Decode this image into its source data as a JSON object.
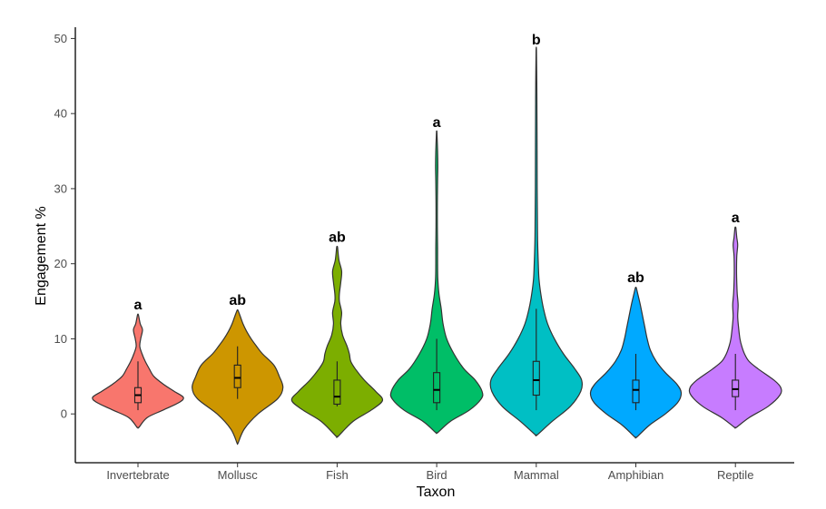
{
  "chart_data": {
    "type": "violin",
    "xlabel": "Taxon",
    "ylabel": "Engagement %",
    "ylim": [
      -6.5,
      51.5
    ],
    "yticks": [
      0,
      10,
      20,
      30,
      40,
      50
    ],
    "grid": false,
    "legend": "none",
    "categories": [
      "Invertebrate",
      "Mollusc",
      "Fish",
      "Bird",
      "Mammal",
      "Amphibian",
      "Reptile"
    ],
    "groups": [
      {
        "name": "Invertebrate",
        "color": "#F8766D",
        "label": "a",
        "min": -1.8,
        "max": 13.2,
        "whisker_low": 0.5,
        "q1": 1.5,
        "median": 2.5,
        "q3": 3.5,
        "whisker_high": 7,
        "density": [
          [
            -1.8,
            0.02
          ],
          [
            -0.5,
            0.2
          ],
          [
            0.5,
            0.55
          ],
          [
            1.5,
            0.9
          ],
          [
            2.2,
            1.0
          ],
          [
            3,
            0.8
          ],
          [
            4,
            0.55
          ],
          [
            5,
            0.35
          ],
          [
            6,
            0.25
          ],
          [
            7,
            0.16
          ],
          [
            8,
            0.09
          ],
          [
            9,
            0.04
          ],
          [
            10,
            0.06
          ],
          [
            11.2,
            0.1
          ],
          [
            12,
            0.05
          ],
          [
            13.2,
            0.01
          ]
        ]
      },
      {
        "name": "Mollusc",
        "color": "#CD9600",
        "label": "ab",
        "min": -3.9,
        "max": 13.8,
        "whisker_low": 2,
        "q1": 3.5,
        "median": 4.8,
        "q3": 6.5,
        "whisker_high": 9,
        "density": [
          [
            -3.9,
            0.01
          ],
          [
            -2,
            0.15
          ],
          [
            0,
            0.45
          ],
          [
            2,
            0.88
          ],
          [
            3.5,
            1.0
          ],
          [
            5,
            0.92
          ],
          [
            6.5,
            0.8
          ],
          [
            8,
            0.55
          ],
          [
            9,
            0.42
          ],
          [
            10,
            0.3
          ],
          [
            11,
            0.2
          ],
          [
            12,
            0.12
          ],
          [
            13,
            0.06
          ],
          [
            13.8,
            0.01
          ]
        ]
      },
      {
        "name": "Fish",
        "color": "#7CAE00",
        "label": "ab",
        "min": -3,
        "max": 22.2,
        "whisker_low": 1,
        "q1": 1.3,
        "median": 2.3,
        "q3": 4.5,
        "whisker_high": 7,
        "density": [
          [
            -3,
            0.02
          ],
          [
            -1,
            0.35
          ],
          [
            0.5,
            0.75
          ],
          [
            1.8,
            1.0
          ],
          [
            3,
            0.85
          ],
          [
            4.5,
            0.6
          ],
          [
            6,
            0.4
          ],
          [
            7,
            0.3
          ],
          [
            8,
            0.27
          ],
          [
            9,
            0.22
          ],
          [
            10.5,
            0.12
          ],
          [
            12,
            0.08
          ],
          [
            13.5,
            0.1
          ],
          [
            15,
            0.05
          ],
          [
            16,
            0.05
          ],
          [
            17.5,
            0.08
          ],
          [
            19,
            0.1
          ],
          [
            20.5,
            0.04
          ],
          [
            22.2,
            0.01
          ]
        ]
      },
      {
        "name": "Bird",
        "color": "#00BE67",
        "label": "a",
        "min": -2.5,
        "max": 37.5,
        "whisker_low": 0.5,
        "q1": 1.5,
        "median": 3.2,
        "q3": 5.5,
        "whisker_high": 10,
        "density": [
          [
            -2.5,
            0.02
          ],
          [
            -1,
            0.3
          ],
          [
            0.5,
            0.72
          ],
          [
            2,
            0.98
          ],
          [
            3,
            1.0
          ],
          [
            4.5,
            0.85
          ],
          [
            6,
            0.6
          ],
          [
            8,
            0.38
          ],
          [
            10,
            0.22
          ],
          [
            12,
            0.14
          ],
          [
            14,
            0.1
          ],
          [
            16,
            0.05
          ],
          [
            18,
            0.025
          ],
          [
            20,
            0.02
          ],
          [
            22,
            0.02
          ],
          [
            25,
            0.015
          ],
          [
            28,
            0.015
          ],
          [
            31,
            0.02
          ],
          [
            33,
            0.025
          ],
          [
            35,
            0.02
          ],
          [
            37.5,
            0.005
          ]
        ]
      },
      {
        "name": "Mammal",
        "color": "#00BFC4",
        "label": "b",
        "min": -2.8,
        "max": 48.5,
        "whisker_low": 0.5,
        "q1": 2.5,
        "median": 4.5,
        "q3": 7,
        "whisker_high": 14,
        "density": [
          [
            -2.8,
            0.02
          ],
          [
            -1,
            0.35
          ],
          [
            1,
            0.75
          ],
          [
            3,
            0.98
          ],
          [
            4.5,
            1.0
          ],
          [
            6,
            0.85
          ],
          [
            8,
            0.6
          ],
          [
            10,
            0.4
          ],
          [
            12,
            0.25
          ],
          [
            14,
            0.16
          ],
          [
            16,
            0.1
          ],
          [
            18,
            0.06
          ],
          [
            20,
            0.045
          ],
          [
            23,
            0.03
          ],
          [
            26,
            0.025
          ],
          [
            30,
            0.02
          ],
          [
            35,
            0.018
          ],
          [
            40,
            0.015
          ],
          [
            44,
            0.012
          ],
          [
            48.5,
            0.004
          ]
        ]
      },
      {
        "name": "Amphibian",
        "color": "#00A9FF",
        "label": "ab",
        "min": -3.1,
        "max": 16.8,
        "whisker_low": 0.5,
        "q1": 1.5,
        "median": 3.2,
        "q3": 4.5,
        "whisker_high": 8,
        "density": [
          [
            -3.1,
            0.02
          ],
          [
            -1.5,
            0.3
          ],
          [
            0,
            0.65
          ],
          [
            1.5,
            0.92
          ],
          [
            2.8,
            1.0
          ],
          [
            4,
            0.9
          ],
          [
            5.5,
            0.65
          ],
          [
            7,
            0.45
          ],
          [
            8.5,
            0.32
          ],
          [
            10,
            0.25
          ],
          [
            11.5,
            0.2
          ],
          [
            13,
            0.15
          ],
          [
            14.5,
            0.1
          ],
          [
            15.8,
            0.05
          ],
          [
            16.8,
            0.01
          ]
        ]
      },
      {
        "name": "Reptile",
        "color": "#C77CFF",
        "label": "a",
        "min": -1.8,
        "max": 24.8,
        "whisker_low": 0.5,
        "q1": 2.3,
        "median": 3.3,
        "q3": 4.5,
        "whisker_high": 8,
        "density": [
          [
            -1.8,
            0.02
          ],
          [
            -0.5,
            0.3
          ],
          [
            1,
            0.72
          ],
          [
            2.5,
            0.98
          ],
          [
            3.5,
            1.0
          ],
          [
            4.5,
            0.85
          ],
          [
            6,
            0.5
          ],
          [
            7,
            0.3
          ],
          [
            8,
            0.2
          ],
          [
            9,
            0.14
          ],
          [
            10,
            0.1
          ],
          [
            11.5,
            0.07
          ],
          [
            13,
            0.05
          ],
          [
            14.5,
            0.06
          ],
          [
            16,
            0.04
          ],
          [
            17.5,
            0.03
          ],
          [
            19,
            0.025
          ],
          [
            21,
            0.03
          ],
          [
            22.5,
            0.05
          ],
          [
            23.5,
            0.03
          ],
          [
            24.8,
            0.01
          ]
        ]
      }
    ]
  }
}
